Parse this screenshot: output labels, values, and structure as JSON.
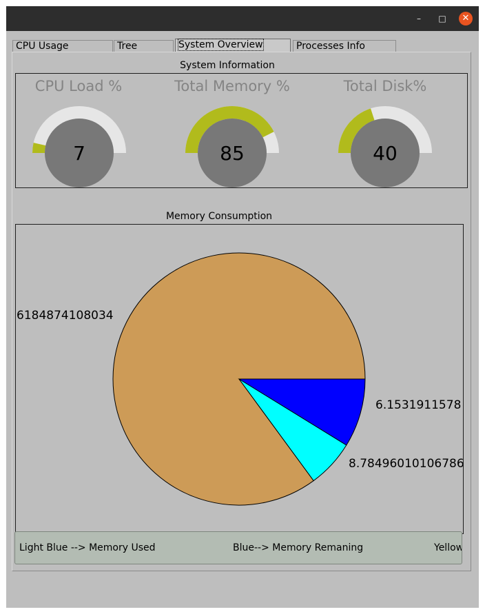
{
  "window": {
    "minimize_glyph": "–",
    "maximize_glyph": "□",
    "close_glyph": "✕"
  },
  "tabs": [
    {
      "label": "CPU Usage",
      "active": false
    },
    {
      "label": "Tree",
      "active": false
    },
    {
      "label": "System Overview",
      "active": true
    },
    {
      "label": "Processes Info",
      "active": false
    }
  ],
  "system_info": {
    "title": "System Information",
    "gauges": [
      {
        "label": "CPU Load %",
        "value": 7
      },
      {
        "label": "Total Memory %",
        "value": 85
      },
      {
        "label": "Total Disk%",
        "value": 40
      }
    ],
    "colors": {
      "filled": "#b1bb1c",
      "empty": "#e6e6e6",
      "center": "#787878"
    }
  },
  "memory": {
    "title": "Memory Consumption",
    "labels": {
      "large": "6184874108034",
      "cyan": "6.1531911578",
      "blue": "8.78496010106786"
    }
  },
  "chart_data": {
    "type": "pie",
    "title": "Memory Consumption",
    "slices": [
      {
        "label": "6184874108034",
        "value": 85.06,
        "color": "#cd9b57"
      },
      {
        "label": "6.1531911578",
        "value": 6.15,
        "color": "#00ffff"
      },
      {
        "label": "8.78496010106786",
        "value": 8.78,
        "color": "#0000ff"
      }
    ]
  },
  "legend": {
    "light_blue": "Light Blue --> Memory Used",
    "blue": "Blue--> Memory Remaning",
    "yellow": "Yellow"
  }
}
